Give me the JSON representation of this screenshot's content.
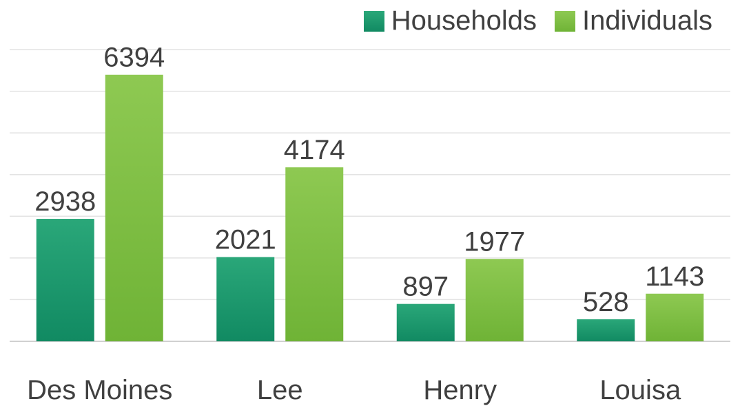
{
  "chart_data": {
    "type": "bar",
    "categories": [
      "Des Moines",
      "Lee",
      "Henry",
      "Louisa"
    ],
    "series": [
      {
        "name": "Households",
        "values": [
          2938,
          2021,
          897,
          528
        ],
        "color_top": "#2aa779",
        "color_bottom": "#118a62"
      },
      {
        "name": "Individuals",
        "values": [
          6394,
          4174,
          1977,
          1143
        ],
        "color_top": "#8ec952",
        "color_bottom": "#6fb336"
      }
    ],
    "ylim": [
      0,
      7000
    ],
    "grid": true,
    "legend": "top-right",
    "data_labels": true
  }
}
